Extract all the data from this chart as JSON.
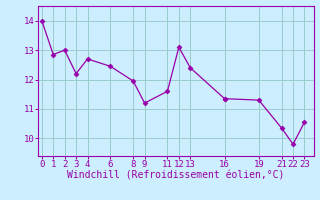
{
  "x": [
    0,
    1,
    2,
    3,
    4,
    6,
    8,
    9,
    11,
    12,
    13,
    16,
    16,
    19,
    21,
    22,
    23
  ],
  "y": [
    14.0,
    12.85,
    13.0,
    12.2,
    12.7,
    12.45,
    11.95,
    11.2,
    11.6,
    13.1,
    12.4,
    11.35,
    11.35,
    11.3,
    10.35,
    9.8,
    10.55
  ],
  "yticks": [
    10,
    11,
    12,
    13,
    14
  ],
  "shown_xticks": [
    0,
    1,
    2,
    3,
    4,
    6,
    8,
    9,
    11,
    12,
    13,
    16,
    19,
    21,
    22,
    23
  ],
  "xlim": [
    -0.3,
    23.8
  ],
  "ylim": [
    9.4,
    14.5
  ],
  "xlabel": "Windchill (Refroidissement éolien,°C)",
  "line_color": "#9900aa",
  "marker": "D",
  "marker_size": 2.5,
  "bg_color": "#cceeff",
  "grid_color": "#99cccc",
  "axis_color": "#9900aa",
  "tick_fontsize": 6.5,
  "label_fontsize": 7.0
}
